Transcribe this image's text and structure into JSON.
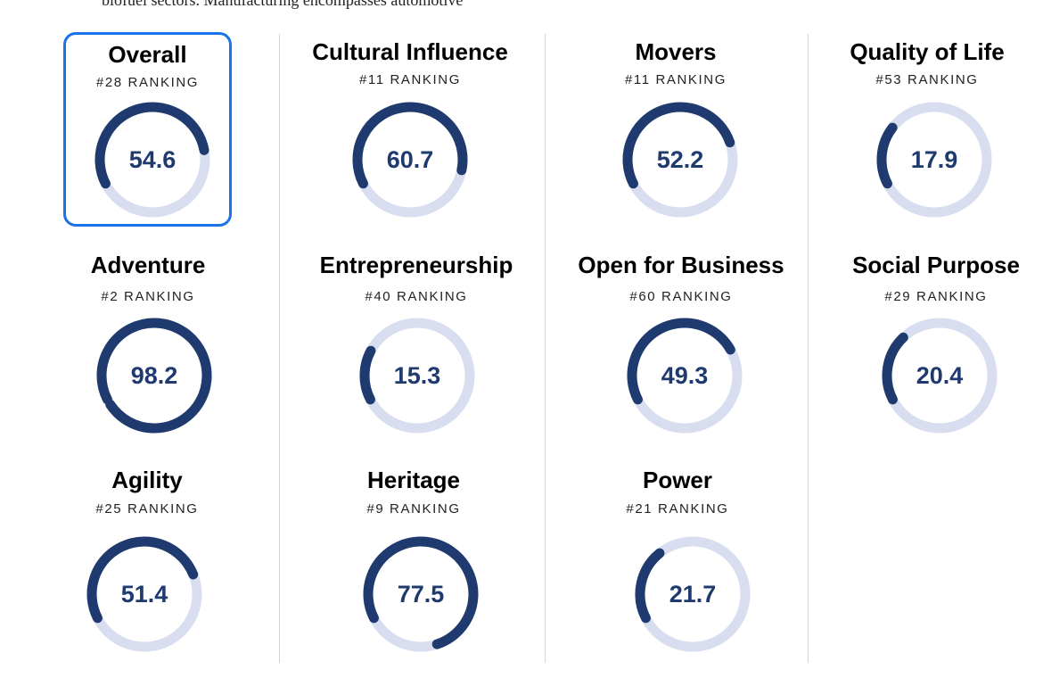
{
  "intro": {
    "text": "biofuel sectors. Manufacturing encompasses automotive"
  },
  "colors": {
    "track": "#d8deef",
    "fill": "#1f3a6e",
    "value_text": "#1f3a6e",
    "selected_border": "#1a73e8"
  },
  "categories": [
    {
      "title": "Overall",
      "rank": "#28 RANKING",
      "score": "54.6",
      "selected": true
    },
    {
      "title": "Cultural Influence",
      "rank": "#11 RANKING",
      "score": "60.7",
      "selected": false
    },
    {
      "title": "Movers",
      "rank": "#11 RANKING",
      "score": "52.2",
      "selected": false
    },
    {
      "title": "Quality of Life",
      "rank": "#53 RANKING",
      "score": "17.9",
      "selected": false
    },
    {
      "title": "Adventure",
      "rank": "#2 RANKING",
      "score": "98.2",
      "selected": false
    },
    {
      "title": "Entrepreneurship",
      "rank": "#40 RANKING",
      "score": "15.3",
      "selected": false
    },
    {
      "title": "Open for Business",
      "rank": "#60 RANKING",
      "score": "49.3",
      "selected": false
    },
    {
      "title": "Social Purpose",
      "rank": "#29 RANKING",
      "score": "20.4",
      "selected": false
    },
    {
      "title": "Agility",
      "rank": "#25 RANKING",
      "score": "51.4",
      "selected": false
    },
    {
      "title": "Heritage",
      "rank": "#9 RANKING",
      "score": "77.5",
      "selected": false
    },
    {
      "title": "Power",
      "rank": "#21 RANKING",
      "score": "21.7",
      "selected": false
    }
  ]
}
